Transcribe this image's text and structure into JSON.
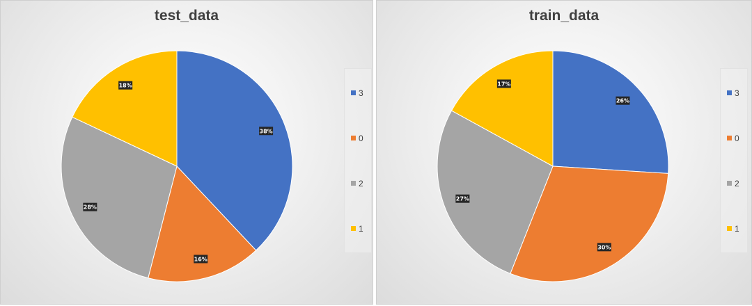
{
  "chart_data": [
    {
      "type": "pie",
      "title": "test_data",
      "categories": [
        "3",
        "0",
        "2",
        "1"
      ],
      "values": [
        38,
        16,
        28,
        18
      ],
      "labels": [
        "38%",
        "16%",
        "28%",
        "18%"
      ],
      "colors": [
        "#4472C4",
        "#ED7D31",
        "#A5A5A5",
        "#FFC000"
      ],
      "legend_position": "right"
    },
    {
      "type": "pie",
      "title": "train_data",
      "categories": [
        "3",
        "0",
        "2",
        "1"
      ],
      "values": [
        26,
        30,
        27,
        17
      ],
      "labels": [
        "26%",
        "30%",
        "27%",
        "17%"
      ],
      "colors": [
        "#4472C4",
        "#ED7D31",
        "#A5A5A5",
        "#FFC000"
      ],
      "legend_position": "right"
    }
  ]
}
